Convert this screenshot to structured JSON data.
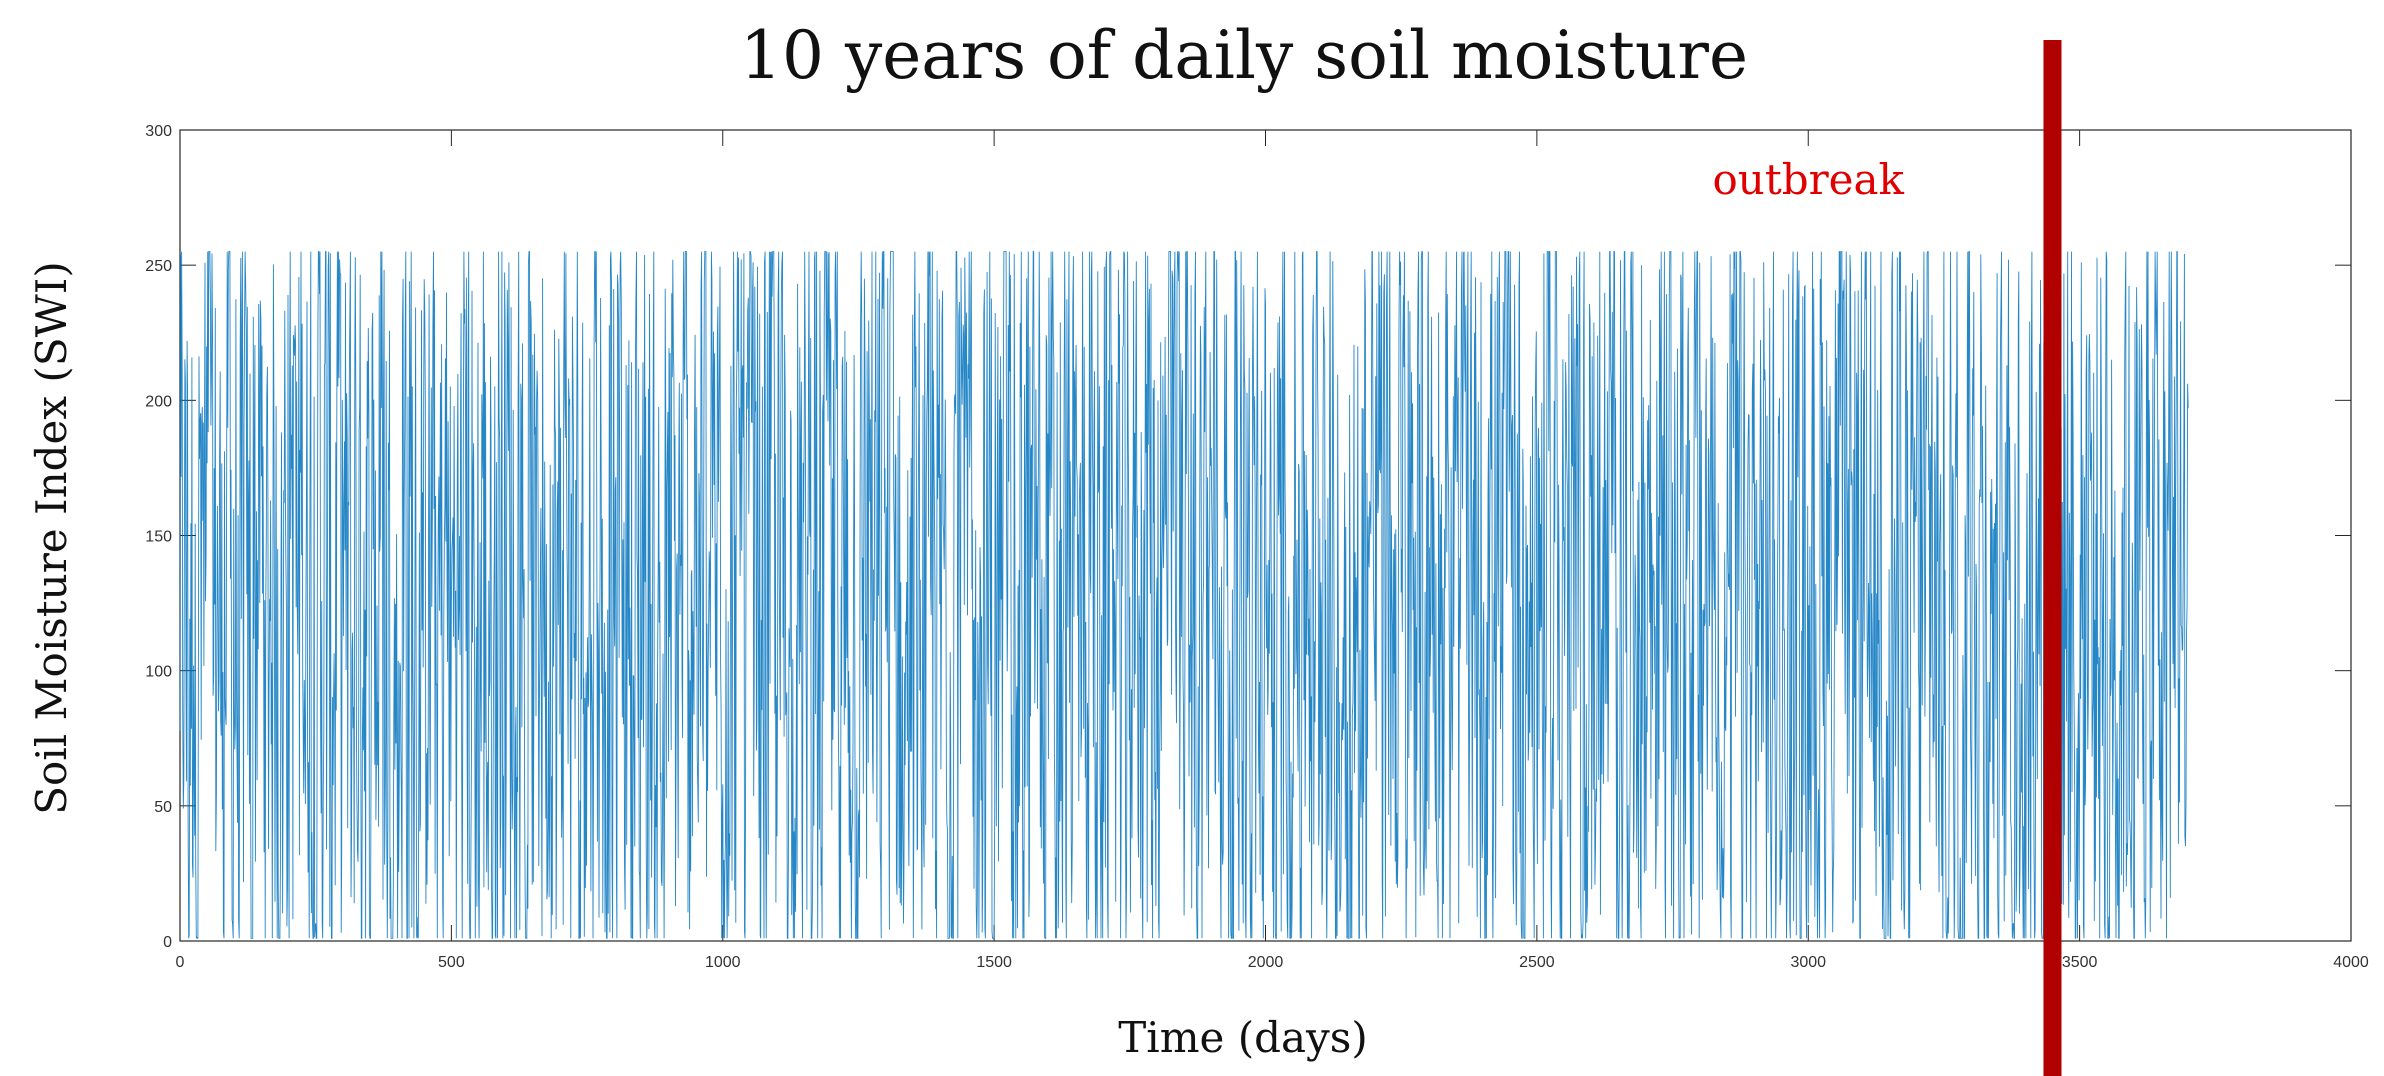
{
  "chart_data": {
    "type": "line",
    "title": "10 years of daily soil moisture",
    "xlabel": "Time (days)",
    "ylabel": "Soil Moisture Index (SWI)",
    "xlim": [
      0,
      4000
    ],
    "ylim": [
      0,
      300
    ],
    "xticks": [
      0,
      500,
      1000,
      1500,
      2000,
      2500,
      3000,
      3500,
      4000
    ],
    "yticks": [
      0,
      50,
      100,
      150,
      200,
      250,
      300
    ],
    "grid": false,
    "series": [
      {
        "description_values": "approximately 3700 daily values oscillating between about 0 and 255",
        "x_range": [
          0,
          3700
        ],
        "y_range": [
          0,
          255
        ],
        "color": "#0072BD"
      }
    ],
    "annotations": [
      {
        "text": "outbreak",
        "x": 3000,
        "y": 280,
        "color": "#E00000"
      }
    ],
    "marker_line": {
      "x": 3450,
      "color": "#B00000"
    }
  }
}
